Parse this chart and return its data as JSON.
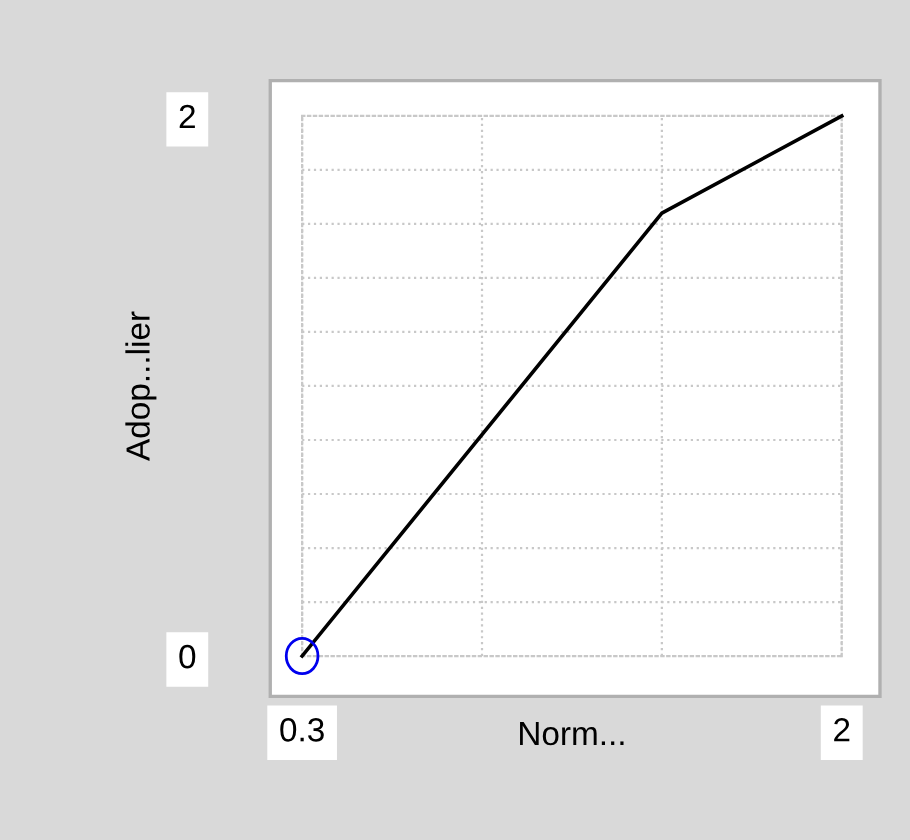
{
  "chart_data": {
    "type": "line",
    "xlabel": "Norm...",
    "ylabel": "Adop...lier",
    "x": [
      0.3,
      0.8667,
      1.4333,
      2
    ],
    "series": [
      {
        "color": "#000000",
        "values": [
          0,
          0.82,
          1.64,
          2
        ]
      }
    ],
    "xlim": [
      0.3,
      2
    ],
    "ylim": [
      0,
      2
    ],
    "xticks": [
      0.3,
      {
        "value": 0.8667,
        "label": null
      },
      {
        "value": 1.4333,
        "label": null
      },
      2
    ],
    "yticks": [
      0,
      {
        "value": 0.2,
        "label": null
      },
      {
        "value": 0.4,
        "label": null
      },
      {
        "value": 0.6,
        "label": null
      },
      {
        "value": 0.8,
        "label": null
      },
      {
        "value": 1.0,
        "label": null
      },
      {
        "value": 1.2,
        "label": null
      },
      {
        "value": 1.4,
        "label": null
      },
      {
        "value": 1.6,
        "label": null
      },
      {
        "value": 1.8,
        "label": null
      },
      2
    ],
    "grid": true,
    "marker": "none",
    "line_style": "solid"
  }
}
